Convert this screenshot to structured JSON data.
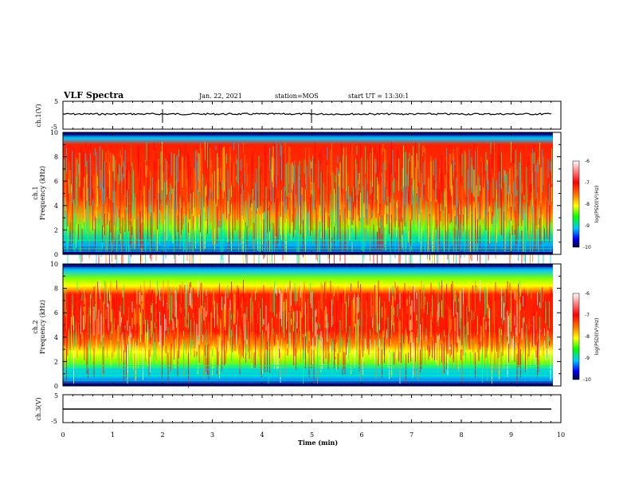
{
  "header": {
    "title": "VLF Spectra",
    "date": "Jan. 22, 2021",
    "station": "station=MOS",
    "start": "start UT = 13:30:1"
  },
  "chart_data": [
    {
      "type": "line",
      "panel": "ch1-voltage",
      "ylabel": "ch.1(V)",
      "yticks": [
        "5",
        "-5"
      ],
      "ylim": [
        -5,
        5
      ],
      "xlim": [
        0,
        10
      ],
      "series": [
        {
          "values_description_level": 0
        }
      ]
    },
    {
      "type": "heatmap",
      "panel": "ch1-spectrogram",
      "ylabel": "ch.1 Frequency (kHz)",
      "ylabel_lines": [
        "ch.1",
        "Frequency (kHz)"
      ],
      "yticks": [
        "0",
        "2",
        "4",
        "6",
        "8",
        "10"
      ],
      "ylim": [
        0,
        10
      ],
      "xlim": [
        0,
        10
      ],
      "colorbar": {
        "label": "log(PSD)(V²/Hz)",
        "ticks": [
          "-6",
          "-7",
          "-8",
          "-9",
          "-10"
        ],
        "range": [
          -10,
          -6
        ]
      }
    },
    {
      "type": "heatmap",
      "panel": "ch2-spectrogram",
      "ylabel": "ch.2 Frequency (kHz)",
      "ylabel_lines": [
        "ch.2",
        "Frequency (kHz)"
      ],
      "yticks": [
        "0",
        "2",
        "4",
        "6",
        "8",
        "10"
      ],
      "ylim": [
        0,
        10
      ],
      "xlim": [
        0,
        10
      ],
      "colorbar": {
        "label": "log(PSD)(V²/Hz)",
        "ticks": [
          "-6",
          "-7",
          "-8",
          "-9",
          "-10"
        ],
        "range": [
          -10,
          -6
        ]
      }
    },
    {
      "type": "line",
      "panel": "ch3-voltage",
      "ylabel": "ch.3(V)",
      "yticks": [
        "5",
        "-5"
      ],
      "ylim": [
        -5,
        5
      ],
      "xlim": [
        0,
        10
      ],
      "series": [
        {
          "values_description_level": 0
        }
      ]
    }
  ],
  "xaxis": {
    "label": "Time (min)",
    "ticks": [
      "0",
      "1",
      "2",
      "3",
      "4",
      "5",
      "6",
      "7",
      "8",
      "9",
      "10"
    ]
  },
  "colormap": [
    "#000080",
    "#0000ff",
    "#00c8ff",
    "#00ff80",
    "#80ff00",
    "#ffff00",
    "#ff8000",
    "#ff0000",
    "#ffffff"
  ]
}
